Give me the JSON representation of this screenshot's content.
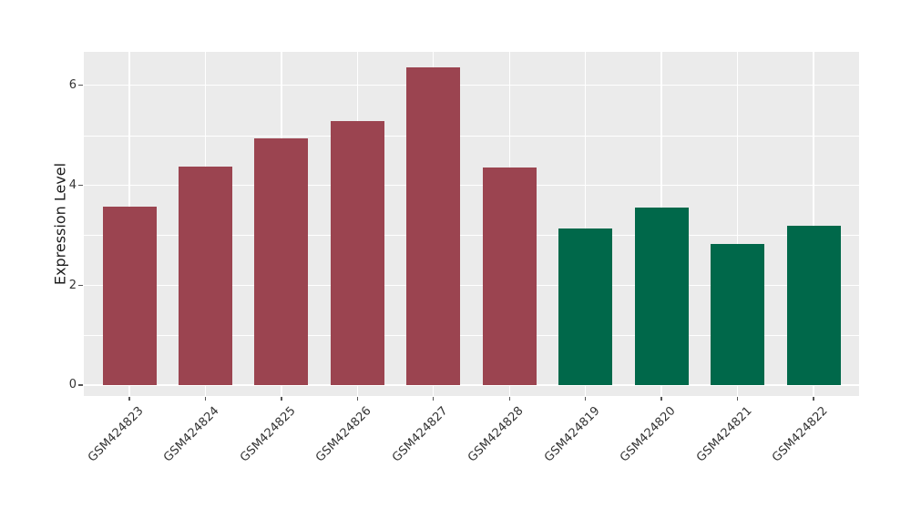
{
  "figure": {
    "background": "#ffffff",
    "panel_background": "#ebebeb",
    "grid_color": "#ffffff",
    "tick_color": "#555555",
    "text_color": "#333333"
  },
  "chart_data": {
    "type": "bar",
    "title": "",
    "xlabel": "",
    "ylabel": "Expression Level",
    "categories": [
      "GSM424823",
      "GSM424824",
      "GSM424825",
      "GSM424826",
      "GSM424827",
      "GSM424828",
      "GSM424819",
      "GSM424820",
      "GSM424821",
      "GSM424822"
    ],
    "values": [
      3.57,
      4.37,
      4.94,
      5.29,
      6.36,
      4.36,
      3.14,
      3.55,
      2.82,
      3.19
    ],
    "bar_colors": [
      "#9b4450",
      "#9b4450",
      "#9b4450",
      "#9b4450",
      "#9b4450",
      "#9b4450",
      "#00684a",
      "#00684a",
      "#00684a",
      "#00684a"
    ],
    "color_groups": [
      {
        "color": "#9b4450",
        "samples": [
          "GSM424823",
          "GSM424824",
          "GSM424825",
          "GSM424826",
          "GSM424827",
          "GSM424828"
        ]
      },
      {
        "color": "#00684a",
        "samples": [
          "GSM424819",
          "GSM424820",
          "GSM424821",
          "GSM424822"
        ]
      }
    ],
    "ylim": [
      -0.22,
      6.67
    ],
    "yticks": [
      0,
      2,
      4,
      6
    ],
    "ytick_labels": [
      "0",
      "2",
      "4",
      "6"
    ],
    "minor_yticks": [
      1,
      3,
      5
    ],
    "grid": "on",
    "legend": "none",
    "x_label_rotation_deg": 45
  }
}
